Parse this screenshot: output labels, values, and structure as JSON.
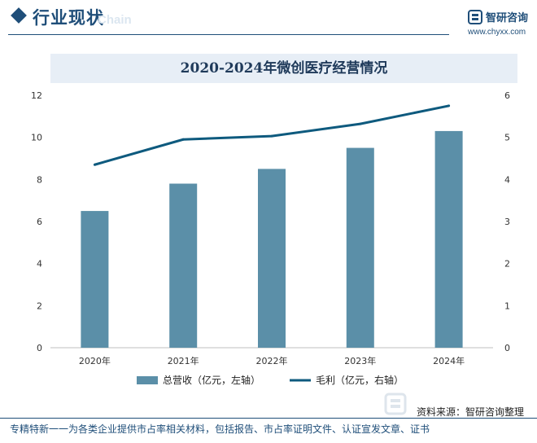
{
  "header": {
    "title": "行业现状",
    "ghost_text": "Chain",
    "logo_name": "智研咨询",
    "logo_url": "www.chyxx.com"
  },
  "chart_data": {
    "type": "bar+line",
    "title": "2020-2024年微创医疗经营情况",
    "categories": [
      "2020年",
      "2021年",
      "2022年",
      "2023年",
      "2024年"
    ],
    "series": [
      {
        "name": "总营收（亿元，左轴）",
        "type": "bar",
        "axis": "left",
        "color": "#5b8fa8",
        "values": [
          6.5,
          7.8,
          8.5,
          9.5,
          10.3
        ]
      },
      {
        "name": "毛利（亿元，右轴）",
        "type": "line",
        "axis": "right",
        "color": "#0e5a7e",
        "values": [
          4.35,
          4.95,
          5.03,
          5.32,
          5.75
        ]
      }
    ],
    "y_left": {
      "min": 0,
      "max": 12,
      "ticks": [
        "0",
        "2",
        "4",
        "6",
        "8",
        "10",
        "12"
      ]
    },
    "y_right": {
      "min": 0,
      "max": 6,
      "ticks": [
        "0",
        "1",
        "2",
        "3",
        "4",
        "5",
        "6"
      ]
    },
    "grid": false,
    "legend_position": "bottom"
  },
  "footer": {
    "source": "资料来源：智研咨询整理",
    "text": "专精特新一一为各类企业提供市占率相关材料，包括报告、市占率证明文件、认证宣发文章、证书"
  }
}
